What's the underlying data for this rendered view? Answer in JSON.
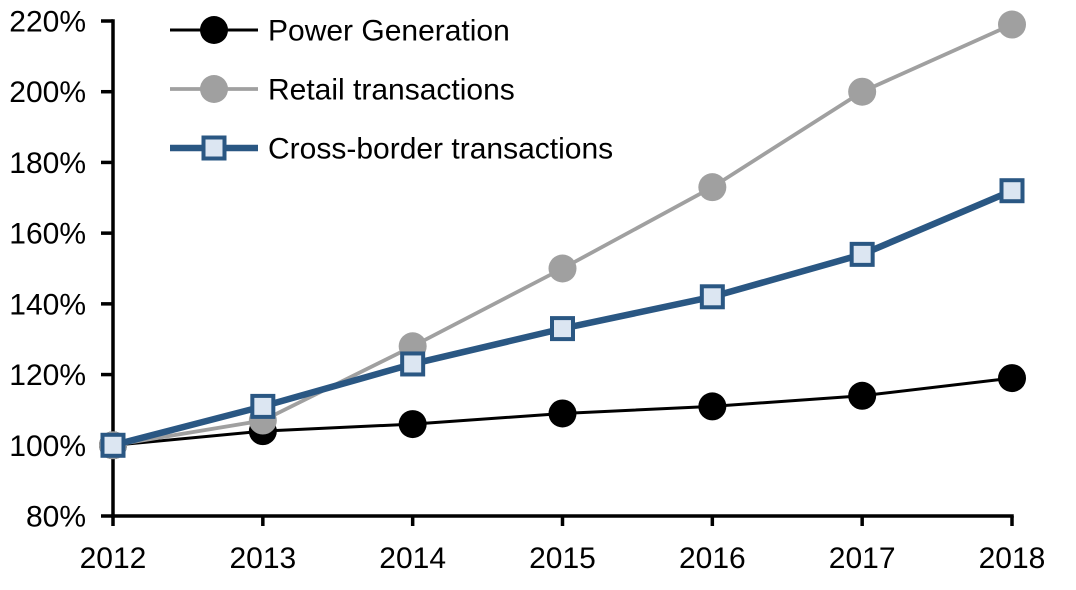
{
  "chart_data": {
    "type": "line",
    "title": "",
    "xlabel": "",
    "ylabel": "",
    "x": [
      2012,
      2013,
      2014,
      2015,
      2016,
      2017,
      2018
    ],
    "xtick_labels": [
      "2012",
      "2013",
      "2014",
      "2015",
      "2016",
      "2017",
      "2018"
    ],
    "ylim": [
      80,
      220
    ],
    "ytick_step": 20,
    "ytick_labels": [
      "80%",
      "100%",
      "120%",
      "140%",
      "160%",
      "180%",
      "200%",
      "220%"
    ],
    "grid": false,
    "legend_position": "top-left-inside",
    "background_color": "#FFFFFF",
    "axis_color": "#000000",
    "text_color": "#000000",
    "series": [
      {
        "name": "Power Generation",
        "color": "#000000",
        "marker": "circle",
        "marker_fill": "#000000",
        "line_width": 3,
        "values": [
          100,
          104,
          106,
          109,
          111,
          114,
          119
        ]
      },
      {
        "name": "Retail transactions",
        "color": "#A0A0A0",
        "marker": "circle",
        "marker_fill": "#A0A0A0",
        "line_width": 3.8,
        "values": [
          100,
          107,
          128,
          150,
          173,
          200,
          219
        ]
      },
      {
        "name": "Cross-border transactions",
        "color": "#2A5783",
        "marker": "square",
        "marker_fill": "#DCE6F2",
        "line_width": 6.5,
        "values": [
          100,
          111,
          123,
          133,
          142,
          154,
          172
        ]
      }
    ]
  }
}
